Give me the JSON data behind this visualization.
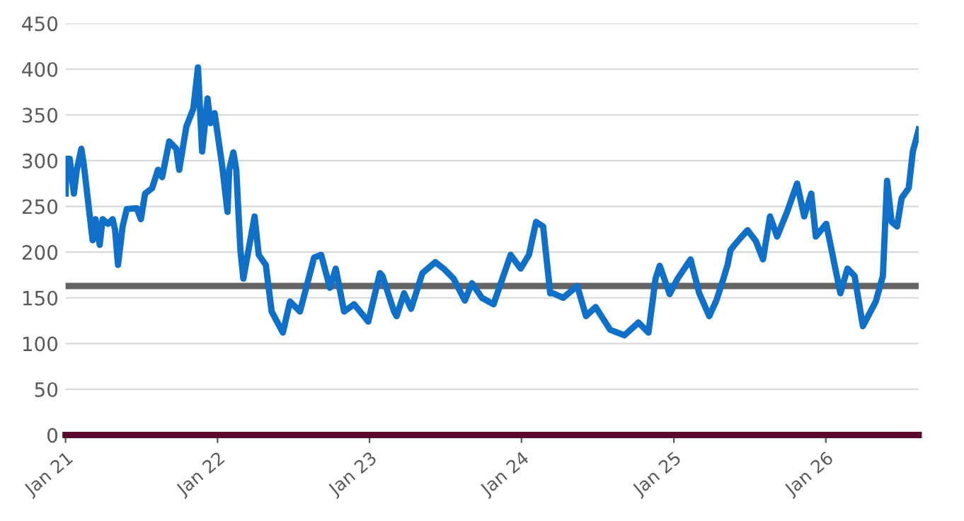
{
  "chart_data": {
    "type": "line",
    "ylim": [
      0,
      450
    ],
    "yticks": [
      0,
      50,
      100,
      150,
      200,
      250,
      300,
      350,
      400,
      450
    ],
    "xlim": [
      "2021-01-01",
      "2026-08-12"
    ],
    "xticks": [
      {
        "value": "2021-01-01",
        "label": "Jan 21"
      },
      {
        "value": "2022-01-01",
        "label": "Jan 22"
      },
      {
        "value": "2023-01-01",
        "label": "Jan 23"
      },
      {
        "value": "2024-01-01",
        "label": "Jan 24"
      },
      {
        "value": "2025-01-01",
        "label": "Jan 25"
      },
      {
        "value": "2026-01-01",
        "label": "Jan 26"
      }
    ],
    "grid": "y",
    "marker": "none",
    "line_style": "solid",
    "ref_lines": [
      {
        "axis": "y",
        "value": 163,
        "color": "#646464"
      }
    ],
    "series": [
      {
        "color": "#1070c8",
        "x": [
          "2021-01-01",
          "2021-01-04",
          "2021-01-11",
          "2021-01-21",
          "2021-01-28",
          "2021-02-08",
          "2021-02-14",
          "2021-03-07",
          "2021-03-14",
          "2021-03-24",
          "2021-03-31",
          "2021-04-13",
          "2021-04-24",
          "2021-04-30",
          "2021-05-07",
          "2021-05-18",
          "2021-05-28",
          "2021-06-21",
          "2021-07-01",
          "2021-07-11",
          "2021-07-28",
          "2021-08-11",
          "2021-08-21",
          "2021-09-07",
          "2021-09-24",
          "2021-10-01",
          "2021-10-18",
          "2021-11-04",
          "2021-11-15",
          "2021-11-25",
          "2021-12-08",
          "2021-12-15",
          "2021-12-25",
          "2022-01-12",
          "2022-01-25",
          "2022-01-29",
          "2022-02-08",
          "2022-02-15",
          "2022-02-25",
          "2022-03-04",
          "2022-03-31",
          "2022-04-10",
          "2022-04-27",
          "2022-05-11",
          "2022-06-07",
          "2022-06-24",
          "2022-07-18",
          "2022-08-21",
          "2022-09-07",
          "2022-09-28",
          "2022-10-12",
          "2022-11-01",
          "2022-11-25",
          "2022-12-29",
          "2023-01-26",
          "2023-02-01",
          "2023-03-01",
          "2023-03-07",
          "2023-03-25",
          "2023-04-11",
          "2023-05-08",
          "2023-06-08",
          "2023-06-28",
          "2023-07-22",
          "2023-08-18",
          "2023-09-04",
          "2023-09-28",
          "2023-10-26",
          "2023-12-06",
          "2023-12-30",
          "2024-01-19",
          "2024-02-05",
          "2024-02-22",
          "2024-03-10",
          "2024-03-17",
          "2024-04-10",
          "2024-05-14",
          "2024-06-04",
          "2024-06-27",
          "2024-08-01",
          "2024-09-04",
          "2024-10-08",
          "2024-11-01",
          "2024-11-18",
          "2024-11-28",
          "2024-12-22",
          "2025-01-10",
          "2025-02-10",
          "2025-03-03",
          "2025-03-27",
          "2025-04-13",
          "2025-04-30",
          "2025-05-10",
          "2025-05-17",
          "2025-05-27",
          "2025-06-13",
          "2025-06-27",
          "2025-07-17",
          "2025-08-03",
          "2025-08-20",
          "2025-09-06",
          "2025-09-30",
          "2025-10-24",
          "2025-11-10",
          "2025-11-27",
          "2025-12-08",
          "2026-01-02",
          "2026-01-22",
          "2026-02-05",
          "2026-02-22",
          "2026-03-11",
          "2026-03-31",
          "2026-05-01",
          "2026-05-18",
          "2026-05-28",
          "2026-06-08",
          "2026-06-21",
          "2026-07-02",
          "2026-07-19",
          "2026-07-29",
          "2026-08-12"
        ],
        "values": [
          264,
          302,
          302,
          264,
          290,
          313,
          295,
          213,
          236,
          208,
          236,
          231,
          236,
          224,
          186,
          228,
          247,
          248,
          236,
          264,
          270,
          290,
          282,
          321,
          313,
          290,
          337,
          357,
          402,
          310,
          368,
          341,
          352,
          295,
          244,
          290,
          309,
          290,
          202,
          171,
          239,
          197,
          186,
          135,
          112,
          146,
          135,
          194,
          197,
          161,
          182,
          135,
          143,
          124,
          177,
          174,
          135,
          130,
          155,
          138,
          177,
          189,
          182,
          171,
          147,
          166,
          150,
          143,
          197,
          182,
          197,
          233,
          228,
          155,
          155,
          150,
          163,
          130,
          140,
          115,
          109,
          123,
          112,
          171,
          185,
          154,
          171,
          192,
          155,
          130,
          147,
          171,
          186,
          202,
          208,
          217,
          224,
          212,
          192,
          239,
          217,
          244,
          275,
          239,
          264,
          217,
          231,
          186,
          155,
          182,
          174,
          119,
          146,
          174,
          278,
          233,
          228,
          259,
          270,
          310,
          334
        ]
      }
    ]
  }
}
